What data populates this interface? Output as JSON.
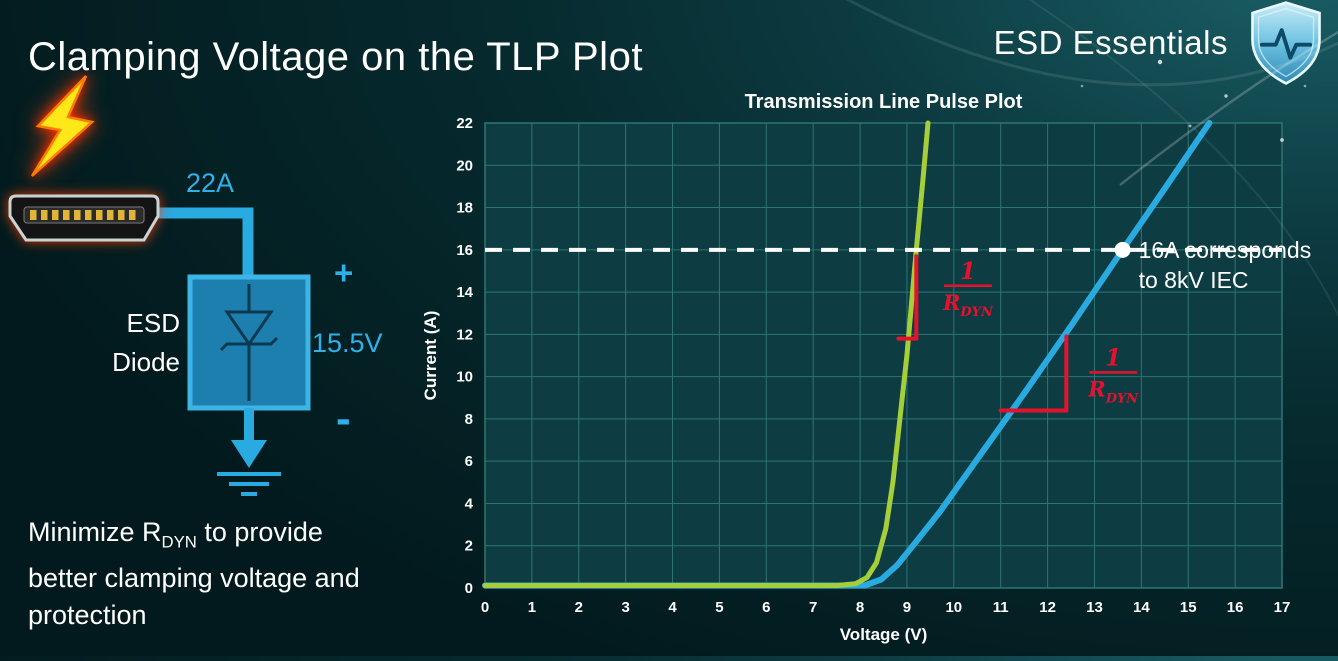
{
  "slide": {
    "title": "Clamping Voltage on the TLP Plot",
    "brand": "ESD Essentials"
  },
  "diagram": {
    "surge_current_label": "22A",
    "device_label_line1": "ESD",
    "device_label_line2": "Diode",
    "plus_label": "+",
    "clamp_voltage_label": "15.5V",
    "minus_label": "-"
  },
  "note": {
    "prefix": "Minimize R",
    "sub": "DYN",
    "suffix": " to provide better clamping voltage and protection"
  },
  "chart_data": {
    "type": "line",
    "title": "Transmission Line Pulse Plot",
    "xlabel": "Voltage (V)",
    "ylabel": "Current (A)",
    "xlim": [
      0,
      17
    ],
    "ylim": [
      0,
      22
    ],
    "xticks": [
      0,
      1,
      2,
      3,
      4,
      5,
      6,
      7,
      8,
      9,
      10,
      11,
      12,
      13,
      14,
      15,
      16,
      17
    ],
    "yticks": [
      0,
      2,
      4,
      6,
      8,
      10,
      12,
      14,
      16,
      18,
      20,
      22
    ],
    "grid": true,
    "legend": "none",
    "colors": {
      "plot_bg": "#0d3d43",
      "grid": "#2c7672"
    },
    "series": [
      {
        "name": "high-rdyn-blue-curve",
        "color": "#29abe2",
        "width": 6,
        "points": [
          [
            0,
            0.12
          ],
          [
            8.1,
            0.12
          ],
          [
            8.45,
            0.4
          ],
          [
            8.8,
            1.1
          ],
          [
            9.2,
            2.2
          ],
          [
            9.7,
            3.6
          ],
          [
            10.5,
            6.1
          ],
          [
            11.5,
            9.2
          ],
          [
            12.5,
            12.4
          ],
          [
            13.6,
            16.0
          ],
          [
            14.5,
            18.9
          ],
          [
            15.45,
            22.0
          ]
        ]
      },
      {
        "name": "low-rdyn-green-curve",
        "color": "#a6ce39",
        "width": 5,
        "points": [
          [
            0,
            0.12
          ],
          [
            7.5,
            0.12
          ],
          [
            7.9,
            0.2
          ],
          [
            8.15,
            0.5
          ],
          [
            8.35,
            1.2
          ],
          [
            8.55,
            2.8
          ],
          [
            8.7,
            5.0
          ],
          [
            8.85,
            8.0
          ],
          [
            9.0,
            11.0
          ],
          [
            9.2,
            16.0
          ],
          [
            9.35,
            19.5
          ],
          [
            9.45,
            22.0
          ]
        ]
      }
    ],
    "reference_line": {
      "y": 16,
      "color": "#ffffff",
      "style": "dashed"
    },
    "marker": {
      "x": 13.6,
      "y": 16,
      "color": "#ffffff",
      "label_lines": [
        "16A corresponds",
        "to 8kV IEC"
      ]
    },
    "slope_markers": [
      {
        "color": "#e8112d",
        "segments": [
          [
            [
              8.82,
              11.8
            ],
            [
              9.2,
              11.8
            ]
          ],
          [
            [
              9.2,
              11.8
            ],
            [
              9.2,
              15.7
            ]
          ]
        ],
        "label_pos": [
          10.3,
          14.3
        ]
      },
      {
        "color": "#e8112d",
        "segments": [
          [
            [
              11.0,
              8.4
            ],
            [
              12.4,
              8.4
            ]
          ],
          [
            [
              12.4,
              8.4
            ],
            [
              12.4,
              11.9
            ]
          ]
        ],
        "label_pos": [
          13.4,
          10.2
        ]
      }
    ],
    "slope_label": {
      "numerator": "1",
      "denominator": "R",
      "denominator_sub": "DYN"
    }
  }
}
